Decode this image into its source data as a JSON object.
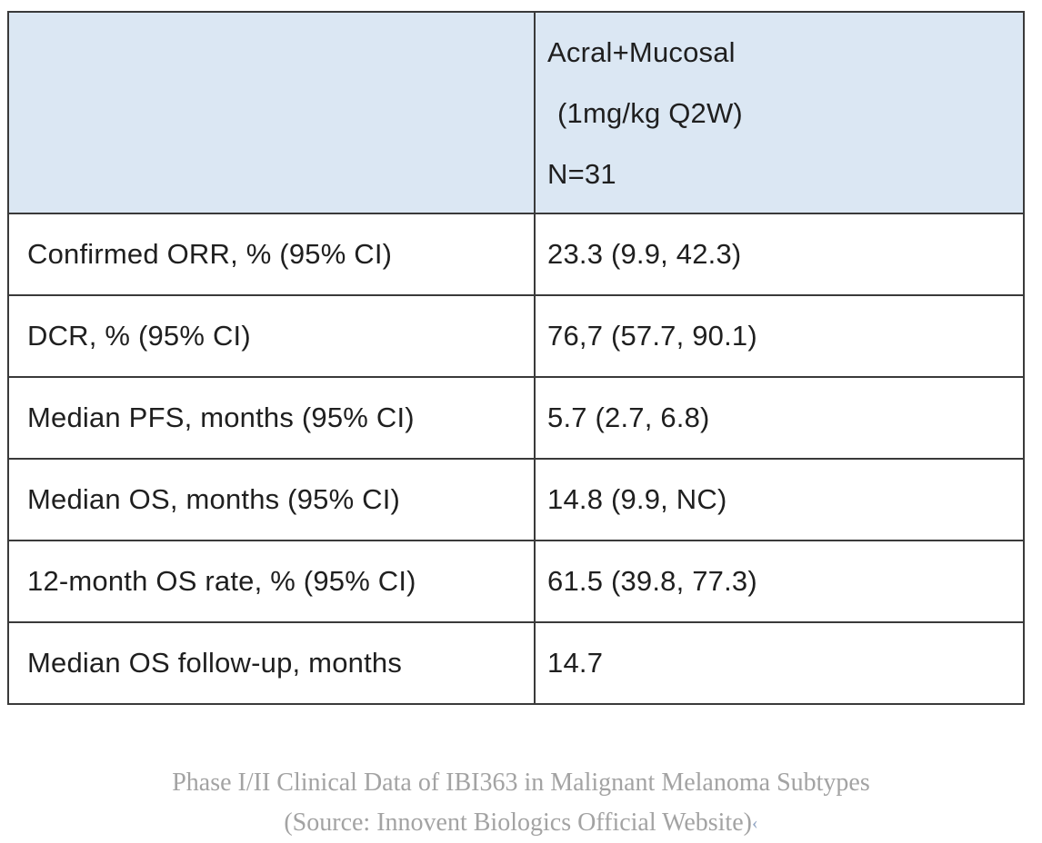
{
  "theme": {
    "header_bg": "#dbe7f3",
    "border_color": "#3a3a3a",
    "text_color": "#1f1f1f",
    "caption_color": "#a3a3a3",
    "mark_color": "#8fa3c2"
  },
  "table": {
    "header": {
      "metric_column_label": "",
      "value_column_lines": [
        "Acral+Mucosal",
        "(1mg/kg Q2W)",
        "N=31"
      ]
    },
    "rows": [
      {
        "label": "Confirmed ORR, % (95% CI)",
        "value": "23.3 (9.9, 42.3)"
      },
      {
        "label": "DCR, % (95% CI)",
        "value": "76,7 (57.7, 90.1)"
      },
      {
        "label": "Median PFS, months (95% CI)",
        "value": "5.7 (2.7, 6.8)"
      },
      {
        "label": "Median OS, months (95% CI)",
        "value": "14.8 (9.9, NC)"
      },
      {
        "label": "12-month OS rate, % (95% CI)",
        "value": "61.5 (39.8, 77.3)"
      },
      {
        "label": "Median OS follow-up, months",
        "value": "14.7"
      }
    ]
  },
  "caption": {
    "line1": "Phase I/II Clinical Data of IBI363 in Malignant Melanoma Subtypes",
    "line2": "(Source: Innovent Biologics Official Website)",
    "trailing_mark": "‹"
  }
}
